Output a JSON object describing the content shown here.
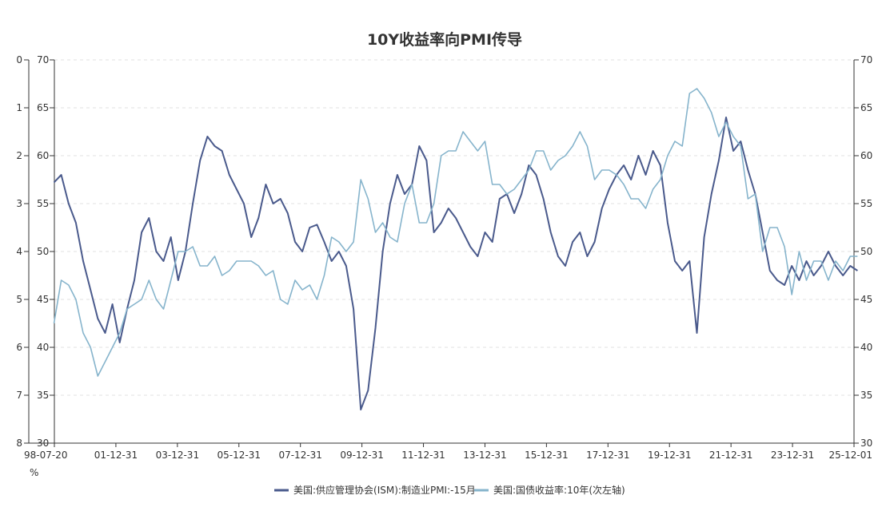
{
  "chart_data": {
    "type": "line",
    "title": "10Y收益率向PMI传导",
    "unit_label": "%",
    "left_axis": {
      "min": 0,
      "max": 8,
      "inverted": true,
      "ticks": [
        "0",
        "1",
        "2",
        "3",
        "4",
        "5",
        "6",
        "7",
        "8"
      ]
    },
    "inner_left_axis": {
      "min": 30,
      "max": 70,
      "ticks": [
        "70",
        "65",
        "60",
        "55",
        "50",
        "45",
        "40",
        "35",
        "30"
      ]
    },
    "right_axis": {
      "min": 30,
      "max": 70,
      "ticks": [
        "70",
        "65",
        "60",
        "55",
        "50",
        "45",
        "40",
        "35",
        "30"
      ]
    },
    "x_ticks": [
      "98-07-20",
      "01-12-31",
      "03-12-31",
      "05-12-31",
      "07-12-31",
      "09-12-31",
      "11-12-31",
      "13-12-31",
      "15-12-31",
      "17-12-31",
      "19-12-31",
      "21-12-31",
      "23-12-31",
      "25-12-01"
    ],
    "grid": true,
    "legend_position": "bottom-center",
    "series": [
      {
        "name": "美国:供应管理协会(ISM):制造业PMI:-15月",
        "color": "#4a5a8c",
        "axis": "inner-left",
        "points": [
          [
            "1998-07",
            57.2
          ],
          [
            "1998-10",
            58.0
          ],
          [
            "1999-01",
            55.0
          ],
          [
            "1999-04",
            53.0
          ],
          [
            "1999-07",
            49.0
          ],
          [
            "1999-10",
            46.0
          ],
          [
            "2000-01",
            43.0
          ],
          [
            "2000-04",
            41.5
          ],
          [
            "2000-07",
            44.5
          ],
          [
            "2000-10",
            40.5
          ],
          [
            "2001-01",
            44.0
          ],
          [
            "2001-04",
            47.0
          ],
          [
            "2001-07",
            52.0
          ],
          [
            "2001-10",
            53.5
          ],
          [
            "2002-01",
            50.0
          ],
          [
            "2002-04",
            49.0
          ],
          [
            "2002-07",
            51.5
          ],
          [
            "2002-10",
            47.0
          ],
          [
            "2003-01",
            50.0
          ],
          [
            "2003-04",
            55.0
          ],
          [
            "2003-07",
            59.5
          ],
          [
            "2003-10",
            62.0
          ],
          [
            "2004-01",
            61.0
          ],
          [
            "2004-04",
            60.5
          ],
          [
            "2004-07",
            58.0
          ],
          [
            "2004-10",
            56.5
          ],
          [
            "2005-01",
            55.0
          ],
          [
            "2005-04",
            51.5
          ],
          [
            "2005-07",
            53.5
          ],
          [
            "2005-10",
            57.0
          ],
          [
            "2006-01",
            55.0
          ],
          [
            "2006-04",
            55.5
          ],
          [
            "2006-07",
            54.0
          ],
          [
            "2006-10",
            51.0
          ],
          [
            "2007-01",
            50.0
          ],
          [
            "2007-04",
            52.5
          ],
          [
            "2007-07",
            52.8
          ],
          [
            "2007-10",
            51.0
          ],
          [
            "2008-01",
            49.0
          ],
          [
            "2008-04",
            50.0
          ],
          [
            "2008-07",
            48.5
          ],
          [
            "2008-10",
            44.0
          ],
          [
            "2009-01",
            33.5
          ],
          [
            "2009-04",
            35.5
          ],
          [
            "2009-07",
            42.0
          ],
          [
            "2009-10",
            50.0
          ],
          [
            "2010-01",
            55.0
          ],
          [
            "2010-04",
            58.0
          ],
          [
            "2010-07",
            56.0
          ],
          [
            "2010-10",
            57.0
          ],
          [
            "2011-01",
            61.0
          ],
          [
            "2011-04",
            59.5
          ],
          [
            "2011-07",
            52.0
          ],
          [
            "2011-10",
            53.0
          ],
          [
            "2012-01",
            54.5
          ],
          [
            "2012-04",
            53.5
          ],
          [
            "2012-07",
            52.0
          ],
          [
            "2012-10",
            50.5
          ],
          [
            "2013-01",
            49.5
          ],
          [
            "2013-04",
            52.0
          ],
          [
            "2013-07",
            51.0
          ],
          [
            "2013-10",
            55.5
          ],
          [
            "2014-01",
            56.0
          ],
          [
            "2014-04",
            54.0
          ],
          [
            "2014-07",
            56.0
          ],
          [
            "2014-10",
            59.0
          ],
          [
            "2015-01",
            58.0
          ],
          [
            "2015-04",
            55.5
          ],
          [
            "2015-07",
            52.0
          ],
          [
            "2015-10",
            49.5
          ],
          [
            "2016-01",
            48.5
          ],
          [
            "2016-04",
            51.0
          ],
          [
            "2016-07",
            52.0
          ],
          [
            "2016-10",
            49.5
          ],
          [
            "2017-01",
            51.0
          ],
          [
            "2017-04",
            54.5
          ],
          [
            "2017-07",
            56.5
          ],
          [
            "2017-10",
            58.0
          ],
          [
            "2018-01",
            59.0
          ],
          [
            "2018-04",
            57.5
          ],
          [
            "2018-07",
            60.0
          ],
          [
            "2018-10",
            58.0
          ],
          [
            "2019-01",
            60.5
          ],
          [
            "2019-04",
            59.0
          ],
          [
            "2019-07",
            53.0
          ],
          [
            "2019-10",
            49.0
          ],
          [
            "2020-01",
            48.0
          ],
          [
            "2020-04",
            49.0
          ],
          [
            "2020-07",
            41.5
          ],
          [
            "2020-10",
            51.5
          ],
          [
            "2021-01",
            56.0
          ],
          [
            "2021-04",
            59.5
          ],
          [
            "2021-07",
            64.0
          ],
          [
            "2021-10",
            60.5
          ],
          [
            "2022-01",
            61.5
          ],
          [
            "2022-04",
            58.5
          ],
          [
            "2022-07",
            56.0
          ],
          [
            "2022-10",
            52.0
          ],
          [
            "2023-01",
            48.0
          ],
          [
            "2023-04",
            47.0
          ],
          [
            "2023-07",
            46.5
          ],
          [
            "2023-10",
            48.5
          ],
          [
            "2024-01",
            47.0
          ],
          [
            "2024-04",
            49.0
          ],
          [
            "2024-07",
            47.5
          ],
          [
            "2024-10",
            48.5
          ],
          [
            "2025-01",
            50.0
          ],
          [
            "2025-04",
            48.5
          ],
          [
            "2025-07",
            47.5
          ],
          [
            "2025-10",
            48.5
          ],
          [
            "2026-01",
            48.0
          ]
        ]
      },
      {
        "name": "美国:国债收益率:10年(次左轴)",
        "color": "#86b4cc",
        "axis": "left",
        "points": [
          [
            "1998-07",
            5.5
          ],
          [
            "1998-10",
            4.6
          ],
          [
            "1999-01",
            4.7
          ],
          [
            "1999-04",
            5.0
          ],
          [
            "1999-07",
            5.7
          ],
          [
            "1999-10",
            6.0
          ],
          [
            "2000-01",
            6.6
          ],
          [
            "2000-04",
            6.3
          ],
          [
            "2000-07",
            6.0
          ],
          [
            "2000-10",
            5.7
          ],
          [
            "2001-01",
            5.2
          ],
          [
            "2001-04",
            5.1
          ],
          [
            "2001-07",
            5.0
          ],
          [
            "2001-10",
            4.6
          ],
          [
            "2002-01",
            5.0
          ],
          [
            "2002-04",
            5.2
          ],
          [
            "2002-07",
            4.6
          ],
          [
            "2002-10",
            4.0
          ],
          [
            "2003-01",
            4.0
          ],
          [
            "2003-04",
            3.9
          ],
          [
            "2003-07",
            4.3
          ],
          [
            "2003-10",
            4.3
          ],
          [
            "2004-01",
            4.1
          ],
          [
            "2004-04",
            4.5
          ],
          [
            "2004-07",
            4.4
          ],
          [
            "2004-10",
            4.2
          ],
          [
            "2005-01",
            4.2
          ],
          [
            "2005-04",
            4.2
          ],
          [
            "2005-07",
            4.3
          ],
          [
            "2005-10",
            4.5
          ],
          [
            "2006-01",
            4.4
          ],
          [
            "2006-04",
            5.0
          ],
          [
            "2006-07",
            5.1
          ],
          [
            "2006-10",
            4.6
          ],
          [
            "2007-01",
            4.8
          ],
          [
            "2007-04",
            4.7
          ],
          [
            "2007-07",
            5.0
          ],
          [
            "2007-10",
            4.5
          ],
          [
            "2008-01",
            3.7
          ],
          [
            "2008-04",
            3.8
          ],
          [
            "2008-07",
            4.0
          ],
          [
            "2008-10",
            3.8
          ],
          [
            "2009-01",
            2.5
          ],
          [
            "2009-04",
            2.9
          ],
          [
            "2009-07",
            3.6
          ],
          [
            "2009-10",
            3.4
          ],
          [
            "2010-01",
            3.7
          ],
          [
            "2010-04",
            3.8
          ],
          [
            "2010-07",
            3.0
          ],
          [
            "2010-10",
            2.6
          ],
          [
            "2011-01",
            3.4
          ],
          [
            "2011-04",
            3.4
          ],
          [
            "2011-07",
            3.0
          ],
          [
            "2011-10",
            2.0
          ],
          [
            "2012-01",
            1.9
          ],
          [
            "2012-04",
            1.9
          ],
          [
            "2012-07",
            1.5
          ],
          [
            "2012-10",
            1.7
          ],
          [
            "2013-01",
            1.9
          ],
          [
            "2013-04",
            1.7
          ],
          [
            "2013-07",
            2.6
          ],
          [
            "2013-10",
            2.6
          ],
          [
            "2014-01",
            2.8
          ],
          [
            "2014-04",
            2.7
          ],
          [
            "2014-07",
            2.5
          ],
          [
            "2014-10",
            2.3
          ],
          [
            "2015-01",
            1.9
          ],
          [
            "2015-04",
            1.9
          ],
          [
            "2015-07",
            2.3
          ],
          [
            "2015-10",
            2.1
          ],
          [
            "2016-01",
            2.0
          ],
          [
            "2016-04",
            1.8
          ],
          [
            "2016-07",
            1.5
          ],
          [
            "2016-10",
            1.8
          ],
          [
            "2017-01",
            2.5
          ],
          [
            "2017-04",
            2.3
          ],
          [
            "2017-07",
            2.3
          ],
          [
            "2017-10",
            2.4
          ],
          [
            "2018-01",
            2.6
          ],
          [
            "2018-04",
            2.9
          ],
          [
            "2018-07",
            2.9
          ],
          [
            "2018-10",
            3.1
          ],
          [
            "2019-01",
            2.7
          ],
          [
            "2019-04",
            2.5
          ],
          [
            "2019-07",
            2.0
          ],
          [
            "2019-10",
            1.7
          ],
          [
            "2020-01",
            1.8
          ],
          [
            "2020-04",
            0.7
          ],
          [
            "2020-07",
            0.6
          ],
          [
            "2020-10",
            0.8
          ],
          [
            "2021-01",
            1.1
          ],
          [
            "2021-04",
            1.6
          ],
          [
            "2021-07",
            1.3
          ],
          [
            "2021-10",
            1.6
          ],
          [
            "2022-01",
            1.8
          ],
          [
            "2022-04",
            2.9
          ],
          [
            "2022-07",
            2.8
          ],
          [
            "2022-10",
            4.0
          ],
          [
            "2023-01",
            3.5
          ],
          [
            "2023-04",
            3.5
          ],
          [
            "2023-07",
            3.9
          ],
          [
            "2023-10",
            4.9
          ],
          [
            "2024-01",
            4.0
          ],
          [
            "2024-04",
            4.6
          ],
          [
            "2024-07",
            4.2
          ],
          [
            "2024-10",
            4.2
          ],
          [
            "2025-01",
            4.6
          ],
          [
            "2025-04",
            4.2
          ],
          [
            "2025-07",
            4.4
          ],
          [
            "2025-10",
            4.1
          ],
          [
            "2026-01",
            4.1
          ]
        ]
      }
    ]
  }
}
